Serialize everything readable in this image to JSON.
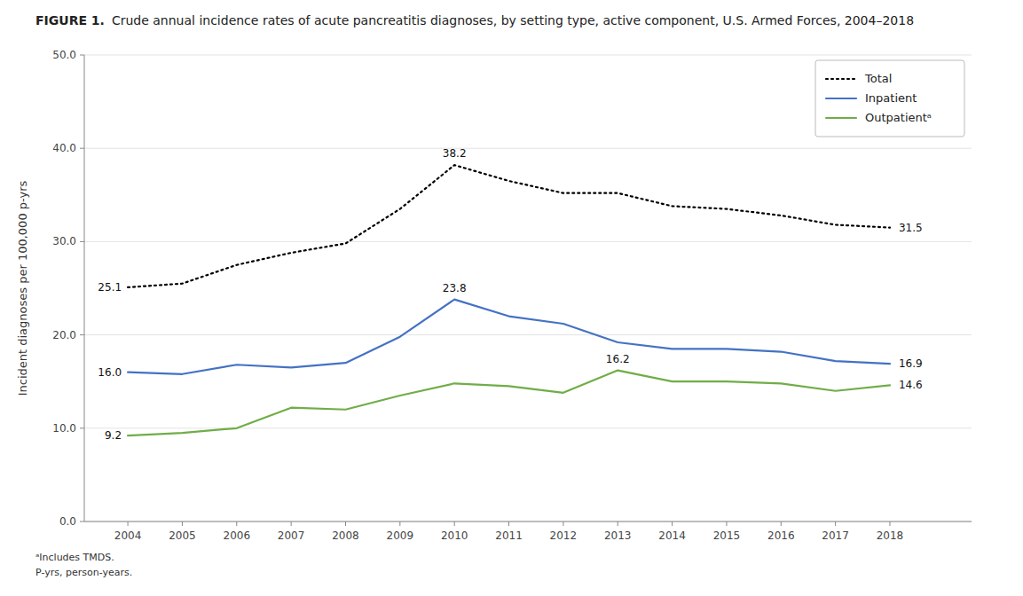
{
  "chart_data": {
    "type": "line",
    "title": "FIGURE 1.",
    "subtitle": "Crude annual incidence rates of acute pancreatitis diagnoses, by setting type, active component, U.S. Armed Forces, 2004–2018",
    "y_label": "Incident diagnoses per 100,000 p-yrs",
    "x": [
      2004,
      2005,
      2006,
      2007,
      2008,
      2009,
      2010,
      2011,
      2012,
      2013,
      2014,
      2015,
      2016,
      2017,
      2018
    ],
    "series": [
      {
        "name": "Total",
        "color": "#000000",
        "line_style": "dotted",
        "values": [
          25.1,
          25.5,
          27.5,
          28.8,
          29.8,
          33.5,
          38.2,
          36.5,
          35.2,
          35.2,
          33.8,
          33.5,
          32.8,
          31.8,
          31.5
        ]
      },
      {
        "name": "Inpatient",
        "color": "#4472C4",
        "line_style": "solid",
        "values": [
          16.0,
          15.8,
          16.8,
          16.5,
          17.0,
          19.8,
          23.8,
          22.0,
          21.2,
          19.2,
          18.5,
          18.5,
          18.2,
          17.2,
          16.9
        ]
      },
      {
        "name": "Outpatientᵃ",
        "color": "#70AD47",
        "line_style": "solid",
        "values": [
          9.2,
          9.5,
          10.0,
          12.2,
          12.0,
          13.5,
          14.8,
          14.5,
          13.8,
          16.2,
          15.0,
          15.0,
          14.8,
          14.0,
          14.6
        ]
      }
    ],
    "xlim": [
      2003.2,
      2019.5
    ],
    "xticks": [
      2004,
      2005,
      2006,
      2007,
      2008,
      2009,
      2010,
      2011,
      2012,
      2013,
      2014,
      2015,
      2016,
      2017,
      2018
    ],
    "ylim": [
      0,
      50
    ],
    "yticks": [
      {
        "value": 0,
        "label": "0.0"
      },
      {
        "value": 10,
        "label": "10.0"
      },
      {
        "value": 20,
        "label": "20.0"
      },
      {
        "value": 30,
        "label": "30.0"
      },
      {
        "value": 40,
        "label": "40.0"
      },
      {
        "value": 50,
        "label": "50.0"
      }
    ],
    "grid": "y",
    "legend": "upper right",
    "annotations": [
      {
        "text": "25.1",
        "x": 2004,
        "series": "Total"
      },
      {
        "text": "16.0",
        "x": 2004,
        "series": "Inpatient"
      },
      {
        "text": "9.2",
        "x": 2004,
        "series": "Outpatientᵃ"
      },
      {
        "text": "38.2",
        "x": 2010,
        "series": "Total"
      },
      {
        "text": "23.8",
        "x": 2010,
        "series": "Inpatient"
      },
      {
        "text": "16.2",
        "x": 2013,
        "series": "Outpatientᵃ"
      },
      {
        "text": "31.5",
        "x": 2018,
        "series": "Total"
      },
      {
        "text": "16.9",
        "x": 2018,
        "series": "Inpatient"
      },
      {
        "text": "14.6",
        "x": 2018,
        "series": "Outpatientᵃ"
      }
    ],
    "footnotes": [
      "ᵃIncludes TMDS.",
      "P-yrs, person-years."
    ]
  }
}
